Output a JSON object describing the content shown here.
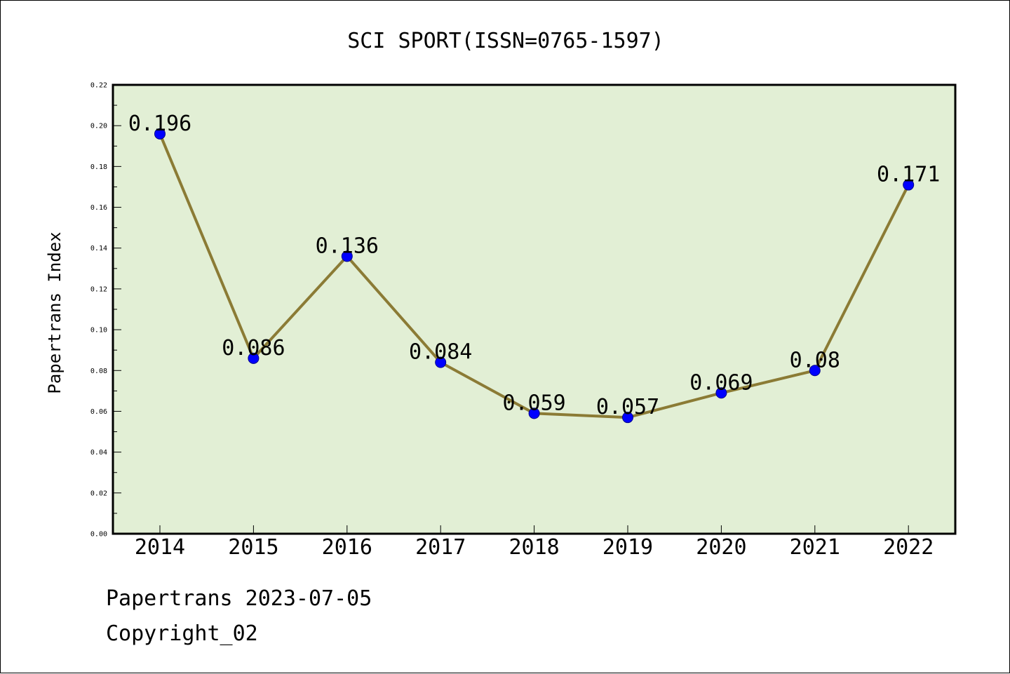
{
  "chart_data": {
    "type": "line",
    "title": "SCI SPORT(ISSN=0765-1597)",
    "xlabel": "",
    "ylabel": "Papertrans Index",
    "categories": [
      "2014",
      "2015",
      "2016",
      "2017",
      "2018",
      "2019",
      "2020",
      "2021",
      "2022"
    ],
    "series": [
      {
        "values": [
          0.196,
          0.086,
          0.136,
          0.084,
          0.059,
          0.057,
          0.069,
          0.08,
          0.171
        ],
        "data_labels": [
          "0.196",
          "0.086",
          "0.136",
          "0.084",
          "0.059",
          "0.057",
          "0.069",
          "0.08",
          "0.171"
        ]
      }
    ],
    "ylim": [
      0,
      0.22
    ],
    "y_ticks": [
      "0.00",
      "0.02",
      "0.04",
      "0.06",
      "0.08",
      "0.10",
      "0.12",
      "0.14",
      "0.16",
      "0.18",
      "0.20",
      "0.22"
    ],
    "grid": false,
    "legend": "none",
    "colors": {
      "plot_background": "#e2efd5",
      "line": "#8b7b35",
      "marker": "#0000ff",
      "marker_edge": "#00008b"
    }
  },
  "footer": {
    "source": "Papertrans 2023-07-05",
    "copyright": "Copyright_02"
  }
}
